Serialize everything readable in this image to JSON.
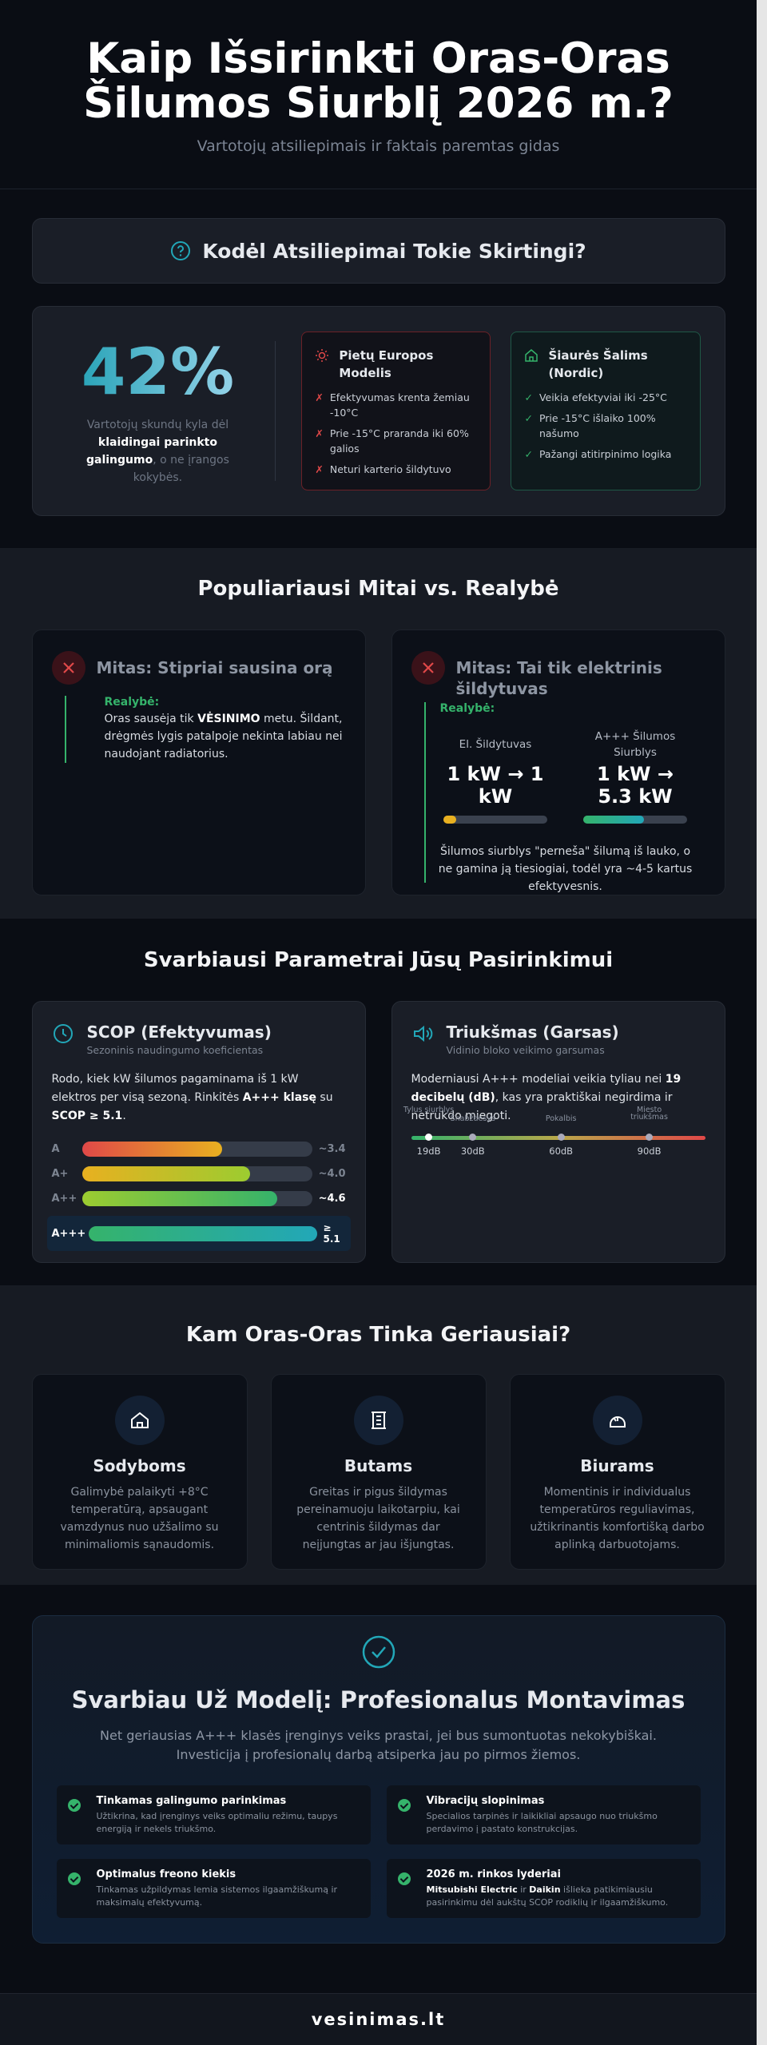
{
  "header": {
    "title": "Kaip Išsirinkti Oras-Oras Šilumos Siurblį 2026 m.?",
    "subtitle": "Vartotojų atsiliepimais ir faktais paremtas gidas"
  },
  "why": {
    "heading": "Kodėl Atsiliepimai Tokie Skirtingi?",
    "stat": "42%",
    "stat_text": [
      "Vartotojų skundų kyla dėl ",
      "klaidingai parinkto galingumo",
      ", o ne įrangos kokybės."
    ],
    "south": {
      "title": "Pietų Europos Modelis",
      "items": [
        "Efektyvumas krenta žemiau -10°C",
        "Prie -15°C praranda iki 60% galios",
        "Neturi karterio šildytuvo"
      ]
    },
    "north": {
      "title": "Šiaurės Šalims (Nordic)",
      "items": [
        "Veikia efektyviai iki -25°C",
        "Prie -15°C išlaiko 100% našumo",
        "Pažangi atitirpinimo logika"
      ]
    }
  },
  "myths": {
    "heading": "Populiariausi Mitai vs. Realybė",
    "cards": [
      {
        "title": "Mitas: Stipriai sausina orą",
        "reality": "Realybė:",
        "text": [
          "Oras sausėja tik ",
          "VĖSINIMO",
          " metu. Šildant, drėgmės lygis patalpoje nekinta labiau nei naudojant radiatorius."
        ]
      },
      {
        "title": "Mitas: Tai tik elektrinis šildytuvas",
        "reality": "Realybė:",
        "compare": [
          {
            "label": "El. Šildytuvas",
            "value": "1 kW → 1 kW"
          },
          {
            "label": "A+++ Šilumos Siurblys",
            "value": "1 kW → 5.3 kW"
          }
        ],
        "note": "Šilumos siurblys \"perneša\" šilumą iš lauko, o ne gamina ją tiesiogiai, todėl yra ~4-5 kartus efektyvesnis."
      }
    ]
  },
  "params": {
    "heading": "Svarbiausi Parametrai Jūsų Pasirinkimui",
    "scop": {
      "title": "SCOP (Efektyvumas)",
      "subtitle": "Sezoninis naudingumo koeficientas",
      "text": [
        "Rodo, kiek kW šilumos pagaminama iš 1 kW elektros per visą sezoną. Rinkitės ",
        "A+++ klasę",
        " su ",
        "SCOP ≥ 5.1",
        "."
      ],
      "classes": [
        {
          "label": "A",
          "value": "~3.4"
        },
        {
          "label": "A+",
          "value": "~4.0"
        },
        {
          "label": "A++",
          "value": "~4.6"
        },
        {
          "label": "A+++",
          "value": "≥ 5.1"
        }
      ]
    },
    "noise": {
      "title": "Triukšmas (Garsas)",
      "subtitle": "Vidinio bloko veikimo garsumas",
      "text": [
        "Moderniausi A+++ modeliai veikia tyliau nei ",
        "19 decibelų (dB)",
        ", kas yra praktiškai negirdima ir netrukdo miegoti."
      ],
      "scale": [
        {
          "label": "Tylus siurblys",
          "level": "19dB"
        },
        {
          "label": "Šnabždesys",
          "level": "30dB"
        },
        {
          "label": "Pokalbis",
          "level": "60dB"
        },
        {
          "label": "Miesto triukšmas",
          "level": "90dB"
        }
      ]
    }
  },
  "suitability": {
    "heading": "Kam Oras-Oras Tinka Geriausiai?",
    "cards": [
      {
        "title": "Sodyboms",
        "text": "Galimybė palaikyti +8°C temperatūrą, apsaugant vamzdynus nuo užšalimo su minimaliomis sąnaudomis."
      },
      {
        "title": "Butams",
        "text": "Greitas ir pigus šildymas pereinamuoju laikotarpiu, kai centrinis šildymas dar neįjungtas ar jau išjungtas."
      },
      {
        "title": "Biurams",
        "text": "Momentinis ir individualus temperatūros reguliavimas, užtikrinantis komfortišką darbo aplinką darbuotojams."
      }
    ]
  },
  "install": {
    "title": "Svarbiau Už Modelį: Profesionalus Montavimas",
    "text": [
      "Net geriausias A+++ klasės įrenginys veiks prastai, jei bus sumontuotas nekokybiškai.",
      "Investicija į profesionalų darbą atsiperka jau po pirmos žiemos."
    ],
    "items": [
      {
        "title": "Tinkamas galingumo parinkimas",
        "text": [
          "Užtikrina, kad įrenginys veiks optimaliu režimu, taupys energiją ir nekels triukšmo."
        ]
      },
      {
        "title": "Vibracijų slopinimas",
        "text": [
          "Specialios tarpinės ir laikikliai apsaugo nuo triukšmo perdavimo į pastato konstrukcijas."
        ]
      },
      {
        "title": "Optimalus freono kiekis",
        "text": [
          "Tinkamas užpildymas lemia sistemos ilgaamžiškumą ir maksimalų efektyvumą."
        ]
      },
      {
        "title": "2026 m. rinkos lyderiai",
        "text": [
          "Mitsubishi Electric",
          " ir ",
          "Daikin",
          " išlieka patikimiausiu pasirinkimu dėl aukštų SCOP rodiklių ir ilgaamžiškumo."
        ]
      }
    ]
  },
  "footer": {
    "brand": "vesinimas.lt"
  }
}
